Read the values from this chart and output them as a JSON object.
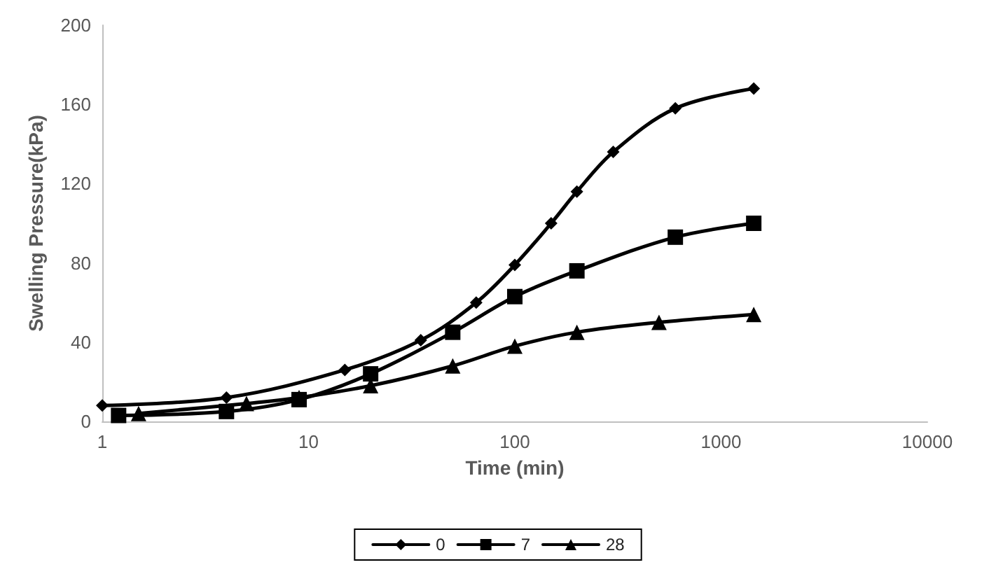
{
  "chart_data": {
    "type": "line",
    "xlabel": "Time (min)",
    "ylabel": "Swelling Pressure(kPa)",
    "log": "x",
    "xlim": [
      1,
      10000
    ],
    "xticks": [
      1,
      10,
      100,
      1000,
      10000
    ],
    "ylim": [
      0,
      200
    ],
    "yticks": [
      0,
      40,
      80,
      120,
      160,
      200
    ],
    "grid": false,
    "legend": "bottom",
    "line_style": "solid",
    "series": [
      {
        "name": "0",
        "color": "#000000",
        "marker": "diamond",
        "x": [
          1,
          4,
          15,
          35,
          65,
          100,
          150,
          200,
          300,
          600,
          1440
        ],
        "values": [
          8,
          12,
          26,
          41,
          60,
          79,
          100,
          116,
          136,
          158,
          168
        ]
      },
      {
        "name": "7",
        "color": "#000000",
        "marker": "square",
        "x": [
          1.2,
          4,
          9,
          20,
          50,
          100,
          200,
          600,
          1440
        ],
        "values": [
          3,
          5,
          11,
          24,
          45,
          63,
          76,
          93,
          100
        ]
      },
      {
        "name": "28",
        "color": "#000000",
        "marker": "triangle",
        "x": [
          1.5,
          5,
          9,
          20,
          50,
          100,
          200,
          500,
          1440
        ],
        "values": [
          4,
          9,
          12,
          18,
          28,
          38,
          45,
          50,
          54
        ]
      }
    ]
  }
}
